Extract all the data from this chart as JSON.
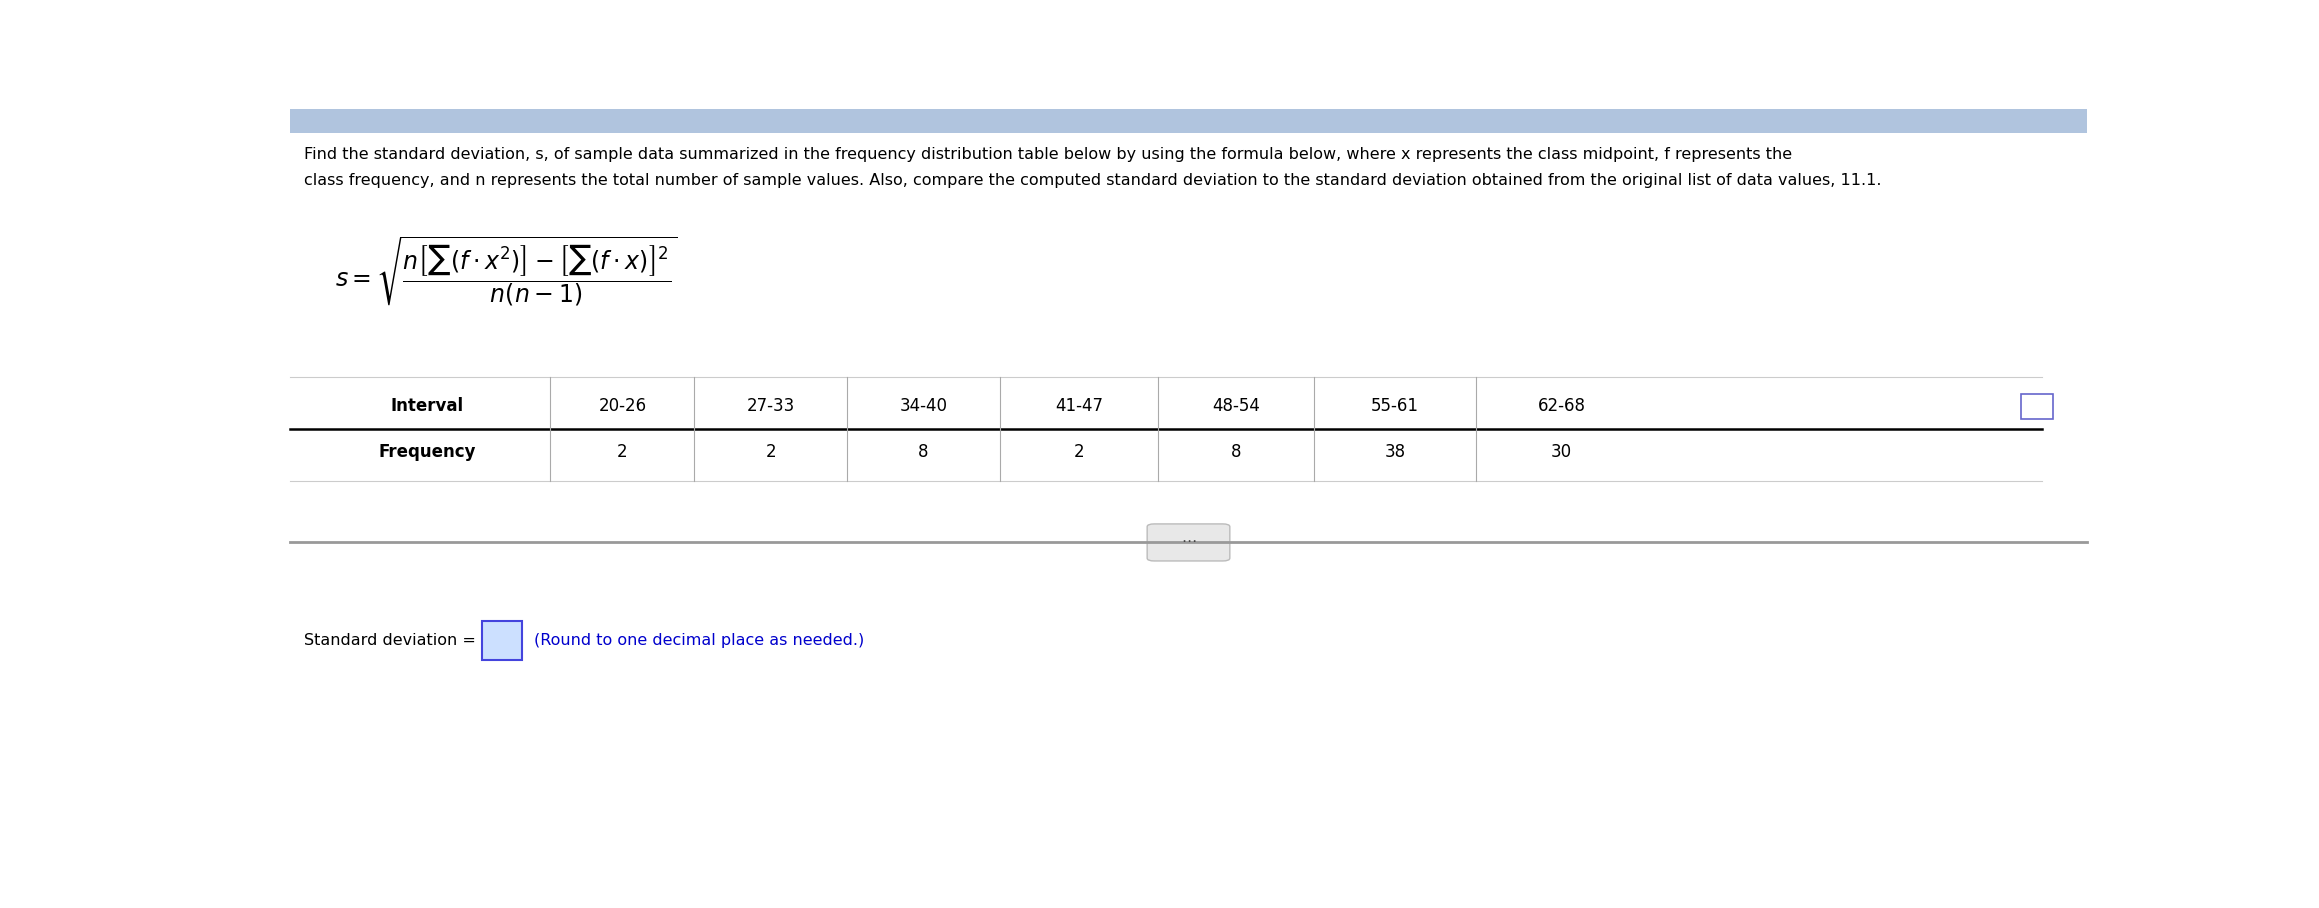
{
  "title_line1": "Find the standard deviation, s, of sample data summarized in the frequency distribution table below by using the formula below, where x represents the class midpoint, f represents the",
  "title_line2": "class frequency, and n represents the total number of sample values. Also, compare the computed standard deviation to the standard deviation obtained from the original list of data values, 11.1.",
  "intervals": [
    "Interval",
    "20-26",
    "27-33",
    "34-40",
    "41-47",
    "48-54",
    "55-61",
    "62-68"
  ],
  "frequencies": [
    "Frequency",
    "2",
    "2",
    "8",
    "2",
    "8",
    "38",
    "30"
  ],
  "std_dev_label": "Standard deviation =",
  "std_dev_hint": "(Round to one decimal place as needed.)",
  "background_color": "#ffffff",
  "text_color": "#000000",
  "blue_color": "#0000cc",
  "divider_color": "#aaaaaa",
  "top_bar_color": "#b0c4de",
  "title_fontsize": 11.5,
  "formula_fontsize": 17,
  "table_fontsize": 12,
  "sd_fontsize": 11.5
}
